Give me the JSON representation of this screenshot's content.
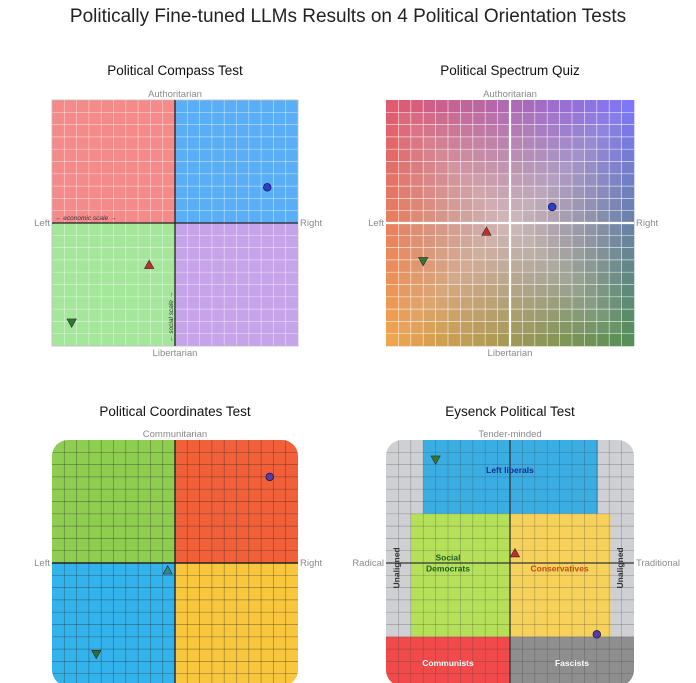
{
  "title": "Politically Fine-tuned LLMs Results on 4 Political Orientation Tests",
  "legend_meaning": {
    "circle": "blue circle marker",
    "triangle_up": "red upward triangle marker",
    "triangle_down": "green downward triangle marker"
  },
  "chart_data": [
    {
      "type": "scatter",
      "title": "Political Compass Test",
      "axis_labels": {
        "top": "Authoritarian",
        "bottom": "Libertarian",
        "left": "Left",
        "right": "Right"
      },
      "inner_labels": {
        "x_scale": "← economic scale →",
        "y_scale": "← social scale →"
      },
      "xlim": [
        -10,
        10
      ],
      "ylim": [
        -10,
        10
      ],
      "quadrant_colors": {
        "top_left": "#f58a8a",
        "top_right": "#5aaef5",
        "bottom_left": "#a4e69a",
        "bottom_right": "#c7a3ea"
      },
      "points": [
        {
          "marker": "circle",
          "color": "#2b3fcc",
          "x": 7.5,
          "y": 2.9
        },
        {
          "marker": "triangle_up",
          "color": "#cc2a2a",
          "x": -2.1,
          "y": -3.4
        },
        {
          "marker": "triangle_down",
          "color": "#2f7a2f",
          "x": -8.4,
          "y": -8.1
        }
      ]
    },
    {
      "type": "scatter",
      "title": "Political Spectrum Quiz",
      "axis_labels": {
        "top": "Authoritarian",
        "bottom": "Libertarian",
        "left": "Left",
        "right": "Right"
      },
      "xlim": [
        -10,
        10
      ],
      "ylim": [
        -10,
        10
      ],
      "corner_colors": {
        "top_left": "#e0556a",
        "top_right": "#7a74ff",
        "bottom_left": "#f4a54a",
        "bottom_right": "#4e8c52"
      },
      "points": [
        {
          "marker": "circle",
          "color": "#2b3fcc",
          "x": 3.4,
          "y": 1.3
        },
        {
          "marker": "triangle_up",
          "color": "#cc2a2a",
          "x": -1.9,
          "y": -0.7
        },
        {
          "marker": "triangle_down",
          "color": "#2f7a2f",
          "x": -7.0,
          "y": -3.1
        }
      ]
    },
    {
      "type": "scatter",
      "title": "Political Coordinates Test",
      "axis_labels": {
        "top": "Communitarian",
        "left": "Left",
        "right": "Right"
      },
      "xlim": [
        -10,
        10
      ],
      "ylim": [
        -10,
        10
      ],
      "quadrant_colors": {
        "top_left": "#8fcd50",
        "top_right": "#f2603a",
        "bottom_left": "#33b3ec",
        "bottom_right": "#f8c73d"
      },
      "points": [
        {
          "marker": "circle",
          "color": "#5a3ca8",
          "x": 7.7,
          "y": 7.0
        },
        {
          "marker": "triangle_up",
          "color": "#2a8a95",
          "x": -0.6,
          "y": -0.6
        },
        {
          "marker": "triangle_down",
          "color": "#2a6e3a",
          "x": -6.4,
          "y": -7.4
        }
      ]
    },
    {
      "type": "scatter",
      "title": "Eysenck Political Test",
      "axis_labels": {
        "top": "Tender-minded",
        "left": "Radical",
        "right": "Traditional"
      },
      "region_labels": {
        "left_liberals": "Left liberals",
        "social_democrats": "Social\nDemocrats",
        "conservatives": "Conservatives",
        "communists": "Communists",
        "fascists": "Fascists",
        "unaligned_left": "Unaligned",
        "unaligned_right": "Unaligned"
      },
      "region_colors": {
        "background": "#cfd0d4",
        "left_liberals": "#3aaee3",
        "social_democrats": "#b4e05a",
        "conservatives": "#f6d25a",
        "communists": "#f24a4a",
        "fascists": "#8e8e8e"
      },
      "xlim": [
        -10,
        10
      ],
      "ylim": [
        -10,
        10
      ],
      "points": [
        {
          "marker": "circle",
          "color": "#5a3ca8",
          "x": 7.0,
          "y": -5.8
        },
        {
          "marker": "triangle_up",
          "color": "#cc2a2a",
          "x": 0.4,
          "y": 0.8
        },
        {
          "marker": "triangle_down",
          "color": "#2f7a2f",
          "x": -6.0,
          "y": 8.4
        }
      ]
    }
  ]
}
